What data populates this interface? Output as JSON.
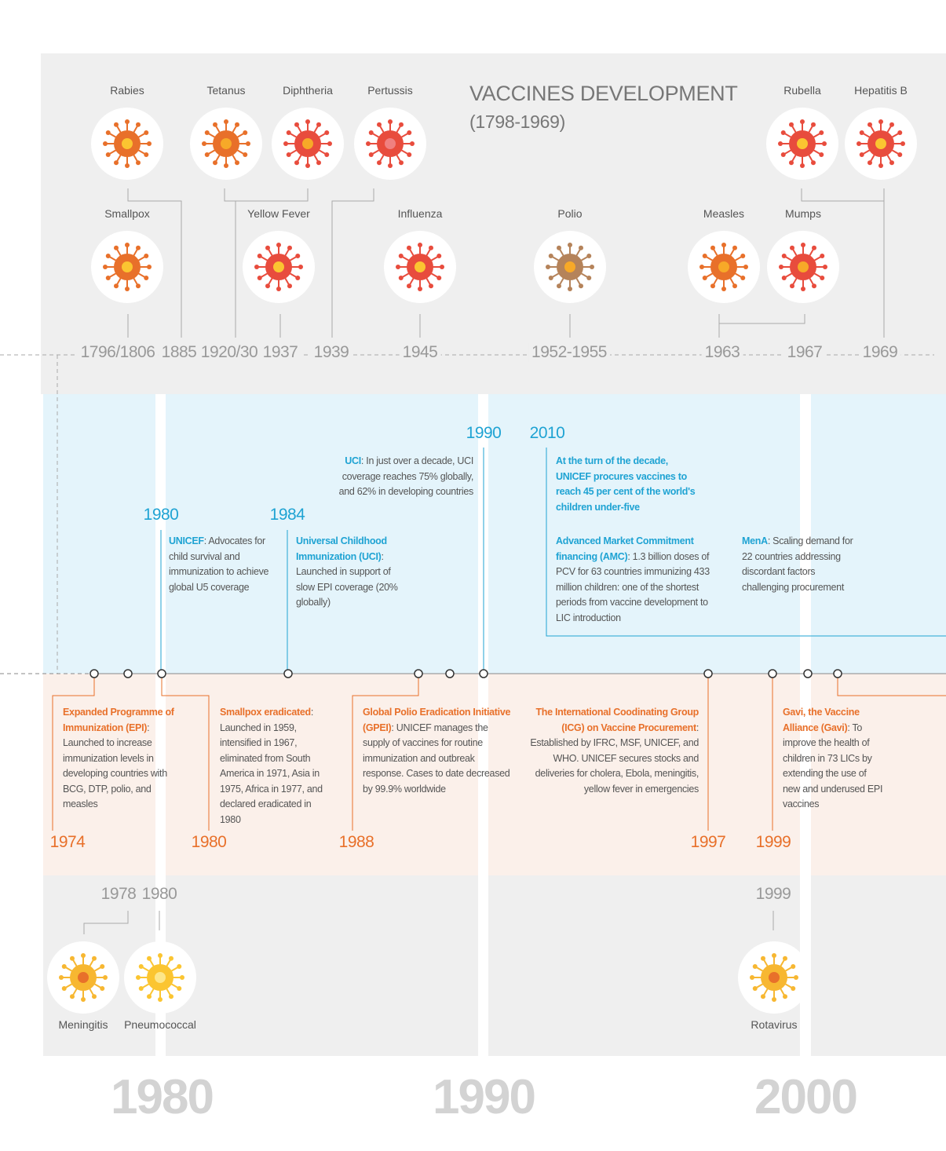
{
  "header": {
    "title": "VACCINES DEVELOPMENT",
    "subtitle": "(1798-1969)"
  },
  "vaccines_early": [
    "Rabies",
    "Tetanus",
    "Diphtheria",
    "Pertussis",
    "Rubella",
    "Hepatitis B",
    "Smallpox",
    "Yellow Fever",
    "Influenza",
    "Polio",
    "Measles",
    "Mumps"
  ],
  "years_early": [
    "1796/1806",
    "1885",
    "1920/30",
    "1937",
    "1939",
    "1945",
    "1952-1955",
    "1963",
    "1967",
    "1969"
  ],
  "blue_events": [
    {
      "year": "1980",
      "bold": "UNICEF",
      "text": ": Advocates for child survival and immunization to achieve global U5 coverage"
    },
    {
      "year": "1984",
      "bold": "Universal Childhood Immunization (UCI)",
      "text": ": Launched in support of slow EPI coverage (20% globally)"
    },
    {
      "year": "1990",
      "bold": "UCI",
      "text": ": In just over a decade, UCI coverage reaches 75% globally, and 62% in developing countries"
    },
    {
      "year": "2010",
      "bold": "At the turn of the decade, UNICEF procures vaccines to reach 45 per cent of the world's children under-five"
    }
  ],
  "blue_notes": [
    {
      "bold": "Advanced Market Commitment financing (AMC)",
      "text": ": 1.3 billion doses of PCV for 63 countries immunizing 433 million children: one of the shortest periods from vaccine development to LIC introduction"
    },
    {
      "bold": "MenA",
      "text": ": Scaling demand for 22 countries addressing discordant factors challenging procurement"
    }
  ],
  "orange_events": [
    {
      "year": "1974",
      "bold": "Expanded Programme of Immunization (EPI)",
      "text": ": Launched to increase immunization levels in developing countries with BCG, DTP,  polio, and measles"
    },
    {
      "year": "1980",
      "bold": "Smallpox eradicated",
      "text": ": Launched in 1959, intensified in 1967, eliminated from South America in 1971, Asia in 1975, Africa in 1977, and declared eradicated in 1980"
    },
    {
      "year": "1988",
      "bold": "Global Polio Eradication Initiative (GPEI)",
      "text": ": UNICEF manages the supply of vaccines for routine immunization and outbreak response. Cases to date decreased by 99.9% worldwide"
    },
    {
      "year": "1997",
      "bold": "The International Coodinating Group (ICG) on Vaccine Procurement",
      "text": ": Established by IFRC, MSF, UNICEF, and WHO. UNICEF secures stocks and deliveries for cholera, Ebola, meningitis, yellow fever in emergencies"
    },
    {
      "year": "1999",
      "bold": "Gavi, the Vaccine Alliance (Gavi)",
      "text": ": To improve the health of children in 73 LICs by extending the use of new and underused EPI vaccines"
    }
  ],
  "years_late": [
    "1978",
    "1980",
    "1999"
  ],
  "vaccines_late": [
    "Meningitis",
    "Pneumococcal",
    "Rotavirus"
  ],
  "decades": [
    "1980",
    "1990",
    "2000"
  ]
}
